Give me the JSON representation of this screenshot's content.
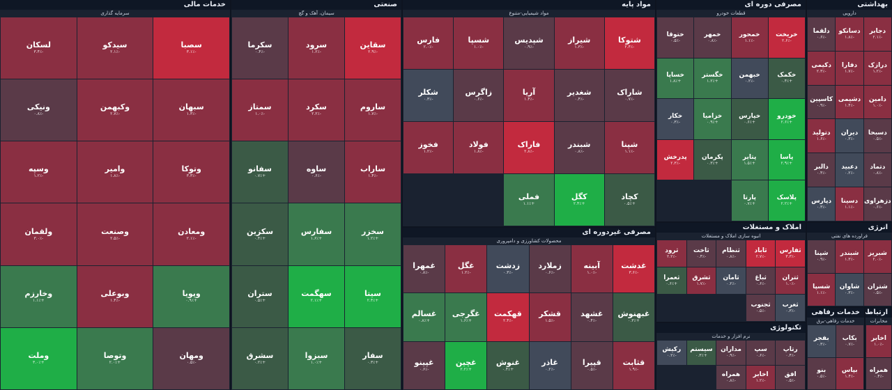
{
  "colors": {
    "strong_pos": "#1fae47",
    "pos": "#3a7a4e",
    "weak_pos": "#3b5a46",
    "neutral": "#414a5a",
    "weak_neg": "#5a3a48",
    "neg": "#8a2f42",
    "strong_neg": "#c22a3e",
    "header_bg": "#0f1725"
  },
  "sectors": [
    {
      "id": "financial",
      "title": "خدمات مالی",
      "subtitle": "سرمایه گذاری",
      "tiles": [
        {
          "sym": "سصبا",
          "chg": "-۳.۱٪",
          "c": "strong_neg"
        },
        {
          "sym": "سیدکو",
          "chg": "-۲.۱٪",
          "c": "neg"
        },
        {
          "sym": "لسکان",
          "chg": "-۳.۴٪",
          "c": "neg"
        },
        {
          "sym": "سبهان",
          "chg": "-۱.۳٪",
          "c": "neg"
        },
        {
          "sym": "وکبهمن",
          "chg": "-۲.۷٪",
          "c": "neg"
        },
        {
          "sym": "ونیکی",
          "chg": "-۰.۸٪",
          "c": "weak_neg"
        },
        {
          "sym": "وتوکا",
          "chg": "-۳.۳٪",
          "c": "neg"
        },
        {
          "sym": "وامیر",
          "chg": "-۱.۸٪",
          "c": "neg"
        },
        {
          "sym": "وسپه",
          "chg": "-۱.۲٪",
          "c": "neg"
        },
        {
          "sym": "ومعادن",
          "chg": "-۲.۱٪",
          "c": "neg"
        },
        {
          "sym": "وصنعت",
          "chg": "-۲.۵٪",
          "c": "neg"
        },
        {
          "sym": "ولقمان",
          "chg": "-۳.۰٪",
          "c": "neg"
        },
        {
          "sym": "وپویا",
          "chg": "+۰.۹٪",
          "c": "pos"
        },
        {
          "sym": "وبوعلی",
          "chg": "-۱.۴٪",
          "c": "neg"
        },
        {
          "sym": "وخارزم",
          "chg": "+۱.۱٪",
          "c": "pos"
        },
        {
          "sym": "ومهان",
          "chg": "-۰.۵٪",
          "c": "weak_neg"
        },
        {
          "sym": "وتوصا",
          "chg": "+۲.۰٪",
          "c": "pos"
        },
        {
          "sym": "وملت",
          "chg": "+۳.۰٪",
          "c": "strong_pos"
        }
      ]
    },
    {
      "id": "industry",
      "title": "صنعتی",
      "subtitle": "سیمان، آهک و گچ",
      "tiles": [
        {
          "sym": "سقاین",
          "chg": "-۲.۹٪",
          "c": "strong_neg"
        },
        {
          "sym": "سرود",
          "chg": "-۱.۲٪",
          "c": "neg"
        },
        {
          "sym": "سکرما",
          "chg": "-۰.۴٪",
          "c": "weak_neg"
        },
        {
          "sym": "ساروم",
          "chg": "-۱.۷٪",
          "c": "neg"
        },
        {
          "sym": "سکرد",
          "chg": "-۲.۲٪",
          "c": "neg"
        },
        {
          "sym": "سمتاز",
          "chg": "-۱.۰٪",
          "c": "neg"
        },
        {
          "sym": "ساراب",
          "chg": "-۱.۴٪",
          "c": "neg"
        },
        {
          "sym": "ساوه",
          "chg": "-۰.۶٪",
          "c": "weak_neg"
        },
        {
          "sym": "سفانو",
          "chg": "+۰.۷٪",
          "c": "weak_pos"
        },
        {
          "sym": "سخزر",
          "chg": "+۱.۲٪",
          "c": "pos"
        },
        {
          "sym": "سفارس",
          "chg": "+۱.۶٪",
          "c": "pos"
        },
        {
          "sym": "سکزین",
          "chg": "+۰.۴٪",
          "c": "weak_pos"
        },
        {
          "sym": "سیتا",
          "chg": "+۲.۴٪",
          "c": "strong_pos"
        },
        {
          "sym": "سهگمت",
          "chg": "+۲.۱٪",
          "c": "strong_pos"
        },
        {
          "sym": "ستران",
          "chg": "+۰.۵٪",
          "c": "weak_pos"
        },
        {
          "sym": "سفار",
          "chg": "+۰.۳٪",
          "c": "weak_pos"
        },
        {
          "sym": "سبزوا",
          "chg": "+۱.۰٪",
          "c": "pos"
        },
        {
          "sym": "سشرق",
          "chg": "+۰.۲٪",
          "c": "weak_pos"
        }
      ]
    },
    {
      "id": "basic",
      "title": "مواد پایه",
      "subtitle": "مواد شیمیایی-متنوع",
      "tiles": [
        {
          "sym": "شتوکا",
          "chg": "-۲.۴٪",
          "c": "strong_neg"
        },
        {
          "sym": "شیراز",
          "chg": "-۱.۳٪",
          "c": "neg"
        },
        {
          "sym": "شپدیس",
          "chg": "-۰.۹٪",
          "c": "weak_neg"
        },
        {
          "sym": "شسپا",
          "chg": "-۱.۰٪",
          "c": "neg"
        },
        {
          "sym": "فارس",
          "chg": "-۲.۰٪",
          "c": "neg"
        },
        {
          "sym": "شاراک",
          "chg": "-۰.۷٪",
          "c": "weak_neg"
        },
        {
          "sym": "شغدیر",
          "chg": "-۰.۴٪",
          "c": "weak_neg"
        },
        {
          "sym": "آریا",
          "chg": "-۱.۴٪",
          "c": "neg"
        },
        {
          "sym": "زاگرس",
          "chg": "-۰.۶٪",
          "c": "weak_neg"
        },
        {
          "sym": "شکلر",
          "chg": "-۰.۳٪",
          "c": "neutral"
        },
        {
          "sym": "شپنا",
          "chg": "-۱.۱٪",
          "c": "neg"
        },
        {
          "sym": "شبندر",
          "chg": "-۰.۸٪",
          "c": "weak_neg"
        },
        {
          "sym": "فاراک",
          "chg": "-۲.۸٪",
          "c": "strong_neg"
        },
        {
          "sym": "فولاد",
          "chg": "-۱.۸٪",
          "c": "neg"
        },
        {
          "sym": "فخوز",
          "chg": "-۱.۲٪",
          "c": "neg"
        },
        {
          "sym": "کچاد",
          "chg": "+۰.۵٪",
          "c": "weak_pos"
        },
        {
          "sym": "کگل",
          "chg": "+۲.۴٪",
          "c": "strong_pos"
        },
        {
          "sym": "فملی",
          "chg": "+۱.۱٪",
          "c": "pos"
        }
      ]
    },
    {
      "id": "cyclical",
      "title": "مصرفی دوره ای",
      "subtitle": "قطعات خودرو",
      "tiles": [
        {
          "sym": "خریخت",
          "chg": "-۲.۶٪",
          "c": "strong_neg"
        },
        {
          "sym": "خمحور",
          "chg": "-۱.۱٪",
          "c": "neg"
        },
        {
          "sym": "خمهر",
          "chg": "-۰.۸٪",
          "c": "weak_neg"
        },
        {
          "sym": "ختوقا",
          "chg": "-۰.۵٪",
          "c": "weak_neg"
        },
        {
          "sym": "خکمک",
          "chg": "+۰.۴٪",
          "c": "weak_pos"
        },
        {
          "sym": "خبهمن",
          "chg": "-۰.۲٪",
          "c": "neutral"
        },
        {
          "sym": "خگستر",
          "chg": "+۱.۲٪",
          "c": "pos"
        },
        {
          "sym": "خساپا",
          "chg": "+۱.۸٪",
          "c": "pos"
        },
        {
          "sym": "خودرو",
          "chg": "+۲.۶٪",
          "c": "strong_pos"
        },
        {
          "sym": "خپارس",
          "chg": "+۰.۶٪",
          "c": "weak_pos"
        },
        {
          "sym": "خزامیا",
          "chg": "+۰.۹٪",
          "c": "pos"
        },
        {
          "sym": "خکار",
          "chg": "-۰.۳٪",
          "c": "neutral"
        },
        {
          "sym": "پاسا",
          "chg": "+۲.۹٪",
          "c": "strong_pos"
        },
        {
          "sym": "پتایر",
          "chg": "+۱.۵٪",
          "c": "pos"
        },
        {
          "sym": "پکرمان",
          "chg": "+۰.۳٪",
          "c": "weak_pos"
        },
        {
          "sym": "پدرخش",
          "chg": "-۲.۳٪",
          "c": "strong_neg"
        },
        {
          "sym": "پلاسک",
          "chg": "+۲.۲٪",
          "c": "strong_pos"
        },
        {
          "sym": "پارتا",
          "chg": "+۰.۷٪",
          "c": "pos"
        }
      ]
    },
    {
      "id": "health",
      "title": "بهداشتی",
      "subtitle": "دارویی",
      "tiles": [
        {
          "sym": "دجابر",
          "chg": "-۲.۱٪",
          "c": "neg"
        },
        {
          "sym": "دسانکو",
          "chg": "-۱.۸٪",
          "c": "neg"
        },
        {
          "sym": "دلقما",
          "chg": "-۰.۶٪",
          "c": "weak_neg"
        },
        {
          "sym": "درازک",
          "chg": "-۱.۲٪",
          "c": "neg"
        },
        {
          "sym": "دفارا",
          "chg": "-۱.۷٪",
          "c": "neg"
        },
        {
          "sym": "دکیمی",
          "chg": "-۲.۳٪",
          "c": "neg"
        },
        {
          "sym": "دامین",
          "chg": "-۱.۰٪",
          "c": "neg"
        },
        {
          "sym": "دشیمی",
          "chg": "-۱.۴٪",
          "c": "neg"
        },
        {
          "sym": "کاسپین",
          "chg": "-۰.۹٪",
          "c": "weak_neg"
        },
        {
          "sym": "دسبحا",
          "chg": "-۰.۵٪",
          "c": "weak_neg"
        },
        {
          "sym": "دیران",
          "chg": "-۰.۳٪",
          "c": "neutral"
        },
        {
          "sym": "دتولید",
          "chg": "-۱.۶٪",
          "c": "neg"
        },
        {
          "sym": "دتماد",
          "chg": "-۰.۸٪",
          "c": "weak_neg"
        },
        {
          "sym": "دعبید",
          "chg": "-۰.۲٪",
          "c": "neutral"
        },
        {
          "sym": "دالبر",
          "chg": "-۰.۴٪",
          "c": "weak_neg"
        },
        {
          "sym": "دزهراوی",
          "chg": "-۰.۶٪",
          "c": "weak_neg"
        },
        {
          "sym": "دسینا",
          "chg": "-۱.۱٪",
          "c": "neg"
        },
        {
          "sym": "دپارس",
          "chg": "-۰.۳٪",
          "c": "neutral"
        }
      ]
    },
    {
      "id": "non_cyclical",
      "title": "مصرفی غیردوره ای",
      "subtitle": "محصولات کشاورزی و دامپروری",
      "tiles": [
        {
          "sym": "غدشت",
          "chg": "-۳.۶٪",
          "c": "strong_neg"
        },
        {
          "sym": "آبینه",
          "chg": "-۱.۰٪",
          "c": "neg"
        },
        {
          "sym": "زملارد",
          "chg": "-۰.۶٪",
          "c": "weak_neg"
        },
        {
          "sym": "زدشت",
          "chg": "-۰.۳٪",
          "c": "neutral"
        },
        {
          "sym": "غگل",
          "chg": "-۱.۲٪",
          "c": "neg"
        },
        {
          "sym": "غمهرا",
          "chg": "-۰.۸٪",
          "c": "weak_neg"
        },
        {
          "sym": "غبهنوش",
          "chg": "+۰.۳٪",
          "c": "weak_pos"
        },
        {
          "sym": "غشهد",
          "chg": "-۰.۴٪",
          "c": "weak_neg"
        },
        {
          "sym": "قشکر",
          "chg": "-۱.۵٪",
          "c": "neg"
        },
        {
          "sym": "قهکمت",
          "chg": "-۲.۴٪",
          "c": "strong_neg"
        },
        {
          "sym": "غگرجی",
          "chg": "+۱.۶٪",
          "c": "pos"
        },
        {
          "sym": "غسالم",
          "chg": "+۰.۸٪",
          "c": "pos"
        },
        {
          "sym": "قثابت",
          "chg": "-۱.۹٪",
          "c": "neg"
        },
        {
          "sym": "قپیرا",
          "chg": "-۰.۵٪",
          "c": "weak_neg"
        },
        {
          "sym": "غاذر",
          "chg": "-۰.۲٪",
          "c": "neutral"
        },
        {
          "sym": "غنوش",
          "chg": "+۰.۴٪",
          "c": "weak_pos"
        },
        {
          "sym": "غچین",
          "chg": "+۲.۲٪",
          "c": "strong_pos"
        },
        {
          "sym": "غپینو",
          "chg": "-۰.۶٪",
          "c": "weak_neg"
        }
      ]
    },
    {
      "id": "real_estate",
      "title": "املاک و مستغلات",
      "subtitle": "انبوه سازی املاک و مستغلات",
      "tiles": [
        {
          "sym": "ثفارس",
          "chg": "-۳.۳٪",
          "c": "strong_neg"
        },
        {
          "sym": "ثاباد",
          "chg": "-۲.۷٪",
          "c": "strong_neg"
        },
        {
          "sym": "ثنظام",
          "chg": "-۰.۸٪",
          "c": "weak_neg"
        },
        {
          "sym": "ثاخت",
          "chg": "-۰.۴٪",
          "c": "weak_neg"
        },
        {
          "sym": "ثرود",
          "chg": "-۲.۲٪",
          "c": "neg"
        },
        {
          "sym": "ثتران",
          "chg": "-۱.۰٪",
          "c": "neg"
        },
        {
          "sym": "ثباغ",
          "chg": "-۰.۶٪",
          "c": "weak_neg"
        },
        {
          "sym": "ثامان",
          "chg": "-۰.۲٪",
          "c": "neutral"
        },
        {
          "sym": "ثشرق",
          "chg": "-۱.۷٪",
          "c": "neg"
        },
        {
          "sym": "ثعمرا",
          "chg": "+۰.۶٪",
          "c": "weak_pos"
        },
        {
          "sym": "ثغرب",
          "chg": "-۰.۳٪",
          "c": "neutral"
        },
        {
          "sym": "ثجنوب",
          "chg": "-۰.۵٪",
          "c": "weak_neg"
        }
      ]
    },
    {
      "id": "energy",
      "title": "انرژی",
      "subtitle": "فراورده های نفتی",
      "tiles": [
        {
          "sym": "شبریز",
          "chg": "-۲.۰٪",
          "c": "neg"
        },
        {
          "sym": "شبندر",
          "chg": "-۱.۳٪",
          "c": "neg"
        },
        {
          "sym": "شپنا",
          "chg": "-۰.۹٪",
          "c": "weak_neg"
        },
        {
          "sym": "شتران",
          "chg": "-۰.۵٪",
          "c": "weak_neg"
        },
        {
          "sym": "شاوان",
          "chg": "-۰.۳٪",
          "c": "neutral"
        },
        {
          "sym": "شسپا",
          "chg": "-۱.۱٪",
          "c": "neg"
        }
      ]
    },
    {
      "id": "tech",
      "title": "تکنولوژی",
      "subtitle": "نرم افزار و خدمات",
      "tiles": [
        {
          "sym": "رتاپ",
          "chg": "-۰.۴٪",
          "c": "weak_neg"
        },
        {
          "sym": "سپ",
          "chg": "-۰.۶٪",
          "c": "weak_neg"
        },
        {
          "sym": "مداران",
          "chg": "-۰.۹٪",
          "c": "weak_neg"
        },
        {
          "sym": "سیستم",
          "chg": "+۰.۳٪",
          "c": "weak_pos"
        },
        {
          "sym": "رکیش",
          "chg": "-۰.۲٪",
          "c": "neutral"
        },
        {
          "sym": "افق",
          "chg": "-۰.۵٪",
          "c": "weak_neg"
        },
        {
          "sym": "اخابر",
          "chg": "-۱.۲٪",
          "c": "neg"
        },
        {
          "sym": "همراه",
          "chg": "-۰.۸٪",
          "c": "weak_neg"
        }
      ]
    },
    {
      "id": "telecom",
      "title": "ارتباطی",
      "subtitle": "مخابرات",
      "tiles": [
        {
          "sym": "اخابر",
          "chg": "-۱.۰٪",
          "c": "neg"
        },
        {
          "sym": "همراه",
          "chg": "-۰.۴٪",
          "c": "weak_neg"
        }
      ]
    },
    {
      "id": "welfare",
      "title": "خدمات رفاهی",
      "subtitle": "خدمات رفاهی-برق",
      "tiles": [
        {
          "sym": "بکاب",
          "chg": "-۰.۷٪",
          "c": "weak_neg"
        },
        {
          "sym": "بفجر",
          "chg": "-۰.۳٪",
          "c": "neutral"
        },
        {
          "sym": "بپاس",
          "chg": "-۱.۴٪",
          "c": "neg"
        },
        {
          "sym": "بنو",
          "chg": "-۰.۵٪",
          "c": "weak_neg"
        }
      ]
    }
  ]
}
